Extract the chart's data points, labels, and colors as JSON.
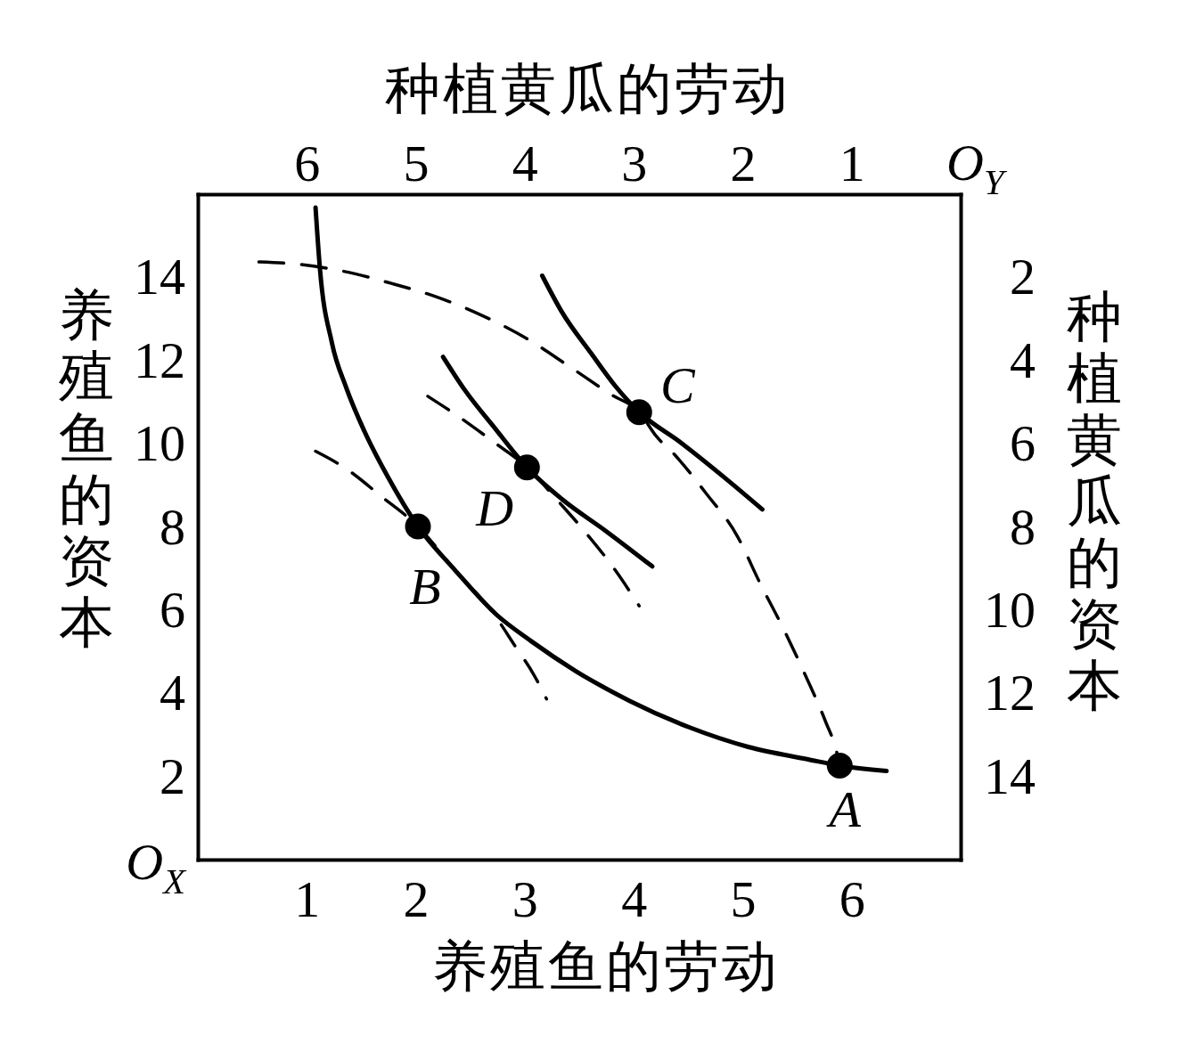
{
  "chart_data": {
    "type": "line",
    "xlabel": "养殖鱼的劳动",
    "x2label": "种植黄瓜的劳动",
    "ylabel": "养殖鱼的资本",
    "y2label": "种植黄瓜的资本",
    "xlim": [
      0,
      7
    ],
    "xticks": [
      1,
      2,
      3,
      4,
      5,
      6
    ],
    "x2lim": [
      7,
      0
    ],
    "x2ticks": [
      6,
      5,
      4,
      3,
      2,
      1
    ],
    "ylim": [
      0,
      16
    ],
    "yticks": [
      2,
      4,
      6,
      8,
      10,
      12,
      14
    ],
    "y2lim": [
      16,
      0
    ],
    "y2ticks": [
      2,
      4,
      6,
      8,
      10,
      12,
      14
    ],
    "series": [
      {
        "color": "#000000",
        "line_style": "solid",
        "marker": "none",
        "x": [
          1.08,
          1.12,
          1.23,
          1.36,
          1.53,
          1.74,
          2.02,
          2.36,
          2.74,
          3.06,
          3.47,
          3.96,
          4.51,
          5.05,
          5.6,
          5.89,
          6.32
        ],
        "values": [
          15.68,
          14.22,
          12.43,
          11.36,
          10.29,
          9.22,
          8.01,
          6.96,
          5.89,
          5.25,
          4.53,
          3.82,
          3.18,
          2.71,
          2.41,
          2.26,
          2.13
        ]
      },
      {
        "color": "#000000",
        "line_style": "solid",
        "marker": "none",
        "x": [
          2.25,
          2.45,
          2.73,
          3.02,
          3.34,
          3.75,
          4.17
        ],
        "values": [
          12.09,
          11.29,
          10.36,
          9.43,
          8.67,
          7.89,
          7.05
        ]
      },
      {
        "color": "#000000",
        "line_style": "solid",
        "marker": "none",
        "x": [
          3.16,
          3.34,
          3.61,
          3.83,
          4.05,
          4.43,
          4.84,
          5.18
        ],
        "values": [
          14.04,
          13.17,
          12.17,
          11.39,
          10.76,
          10.03,
          9.17,
          8.42
        ]
      },
      {
        "color": "#000000",
        "line_style": "dashed",
        "marker": "none",
        "x": [
          0.56,
          0.9,
          1.31,
          1.77,
          2.18,
          2.62,
          3.03,
          3.39,
          3.8,
          4.05,
          4.21,
          4.37,
          4.66,
          4.95,
          5.16,
          5.37,
          5.57,
          5.76,
          5.86,
          5.89
        ],
        "values": [
          14.37,
          14.32,
          14.16,
          13.86,
          13.54,
          13.07,
          12.51,
          11.89,
          11.17,
          10.76,
          10.17,
          9.75,
          8.82,
          7.78,
          6.64,
          5.57,
          4.46,
          3.32,
          2.61,
          2.26
        ]
      },
      {
        "color": "#000000",
        "line_style": "dashed",
        "marker": "none",
        "x": [
          2.11,
          2.4,
          2.7,
          3.02,
          3.33,
          3.56,
          3.83,
          4.05
        ],
        "values": [
          11.14,
          10.64,
          10.07,
          9.43,
          8.55,
          7.86,
          6.96,
          6.1
        ]
      },
      {
        "color": "#000000",
        "line_style": "dashed",
        "marker": "none",
        "x": [
          1.08,
          1.36,
          1.69,
          2.02,
          2.36,
          2.72,
          2.91,
          3.08,
          3.2
        ],
        "values": [
          9.82,
          9.4,
          8.72,
          8.01,
          6.96,
          5.89,
          5.14,
          4.46,
          3.86
        ]
      },
      {
        "type": "scatter",
        "color": "#000000",
        "marker": "circle",
        "x": [
          5.89,
          2.02,
          4.05,
          3.02
        ],
        "values": [
          2.26,
          8.01,
          10.76,
          9.43
        ]
      }
    ],
    "annotations": [
      {
        "text": "A",
        "x": 5.89,
        "y": 2.26
      },
      {
        "text": "B",
        "x": 2.02,
        "y": 8.01
      },
      {
        "text": "C",
        "x": 4.05,
        "y": 10.76
      },
      {
        "text": "D",
        "x": 3.02,
        "y": 9.43
      },
      "O$_{X}$",
      "O$_{Y}$"
    ]
  }
}
